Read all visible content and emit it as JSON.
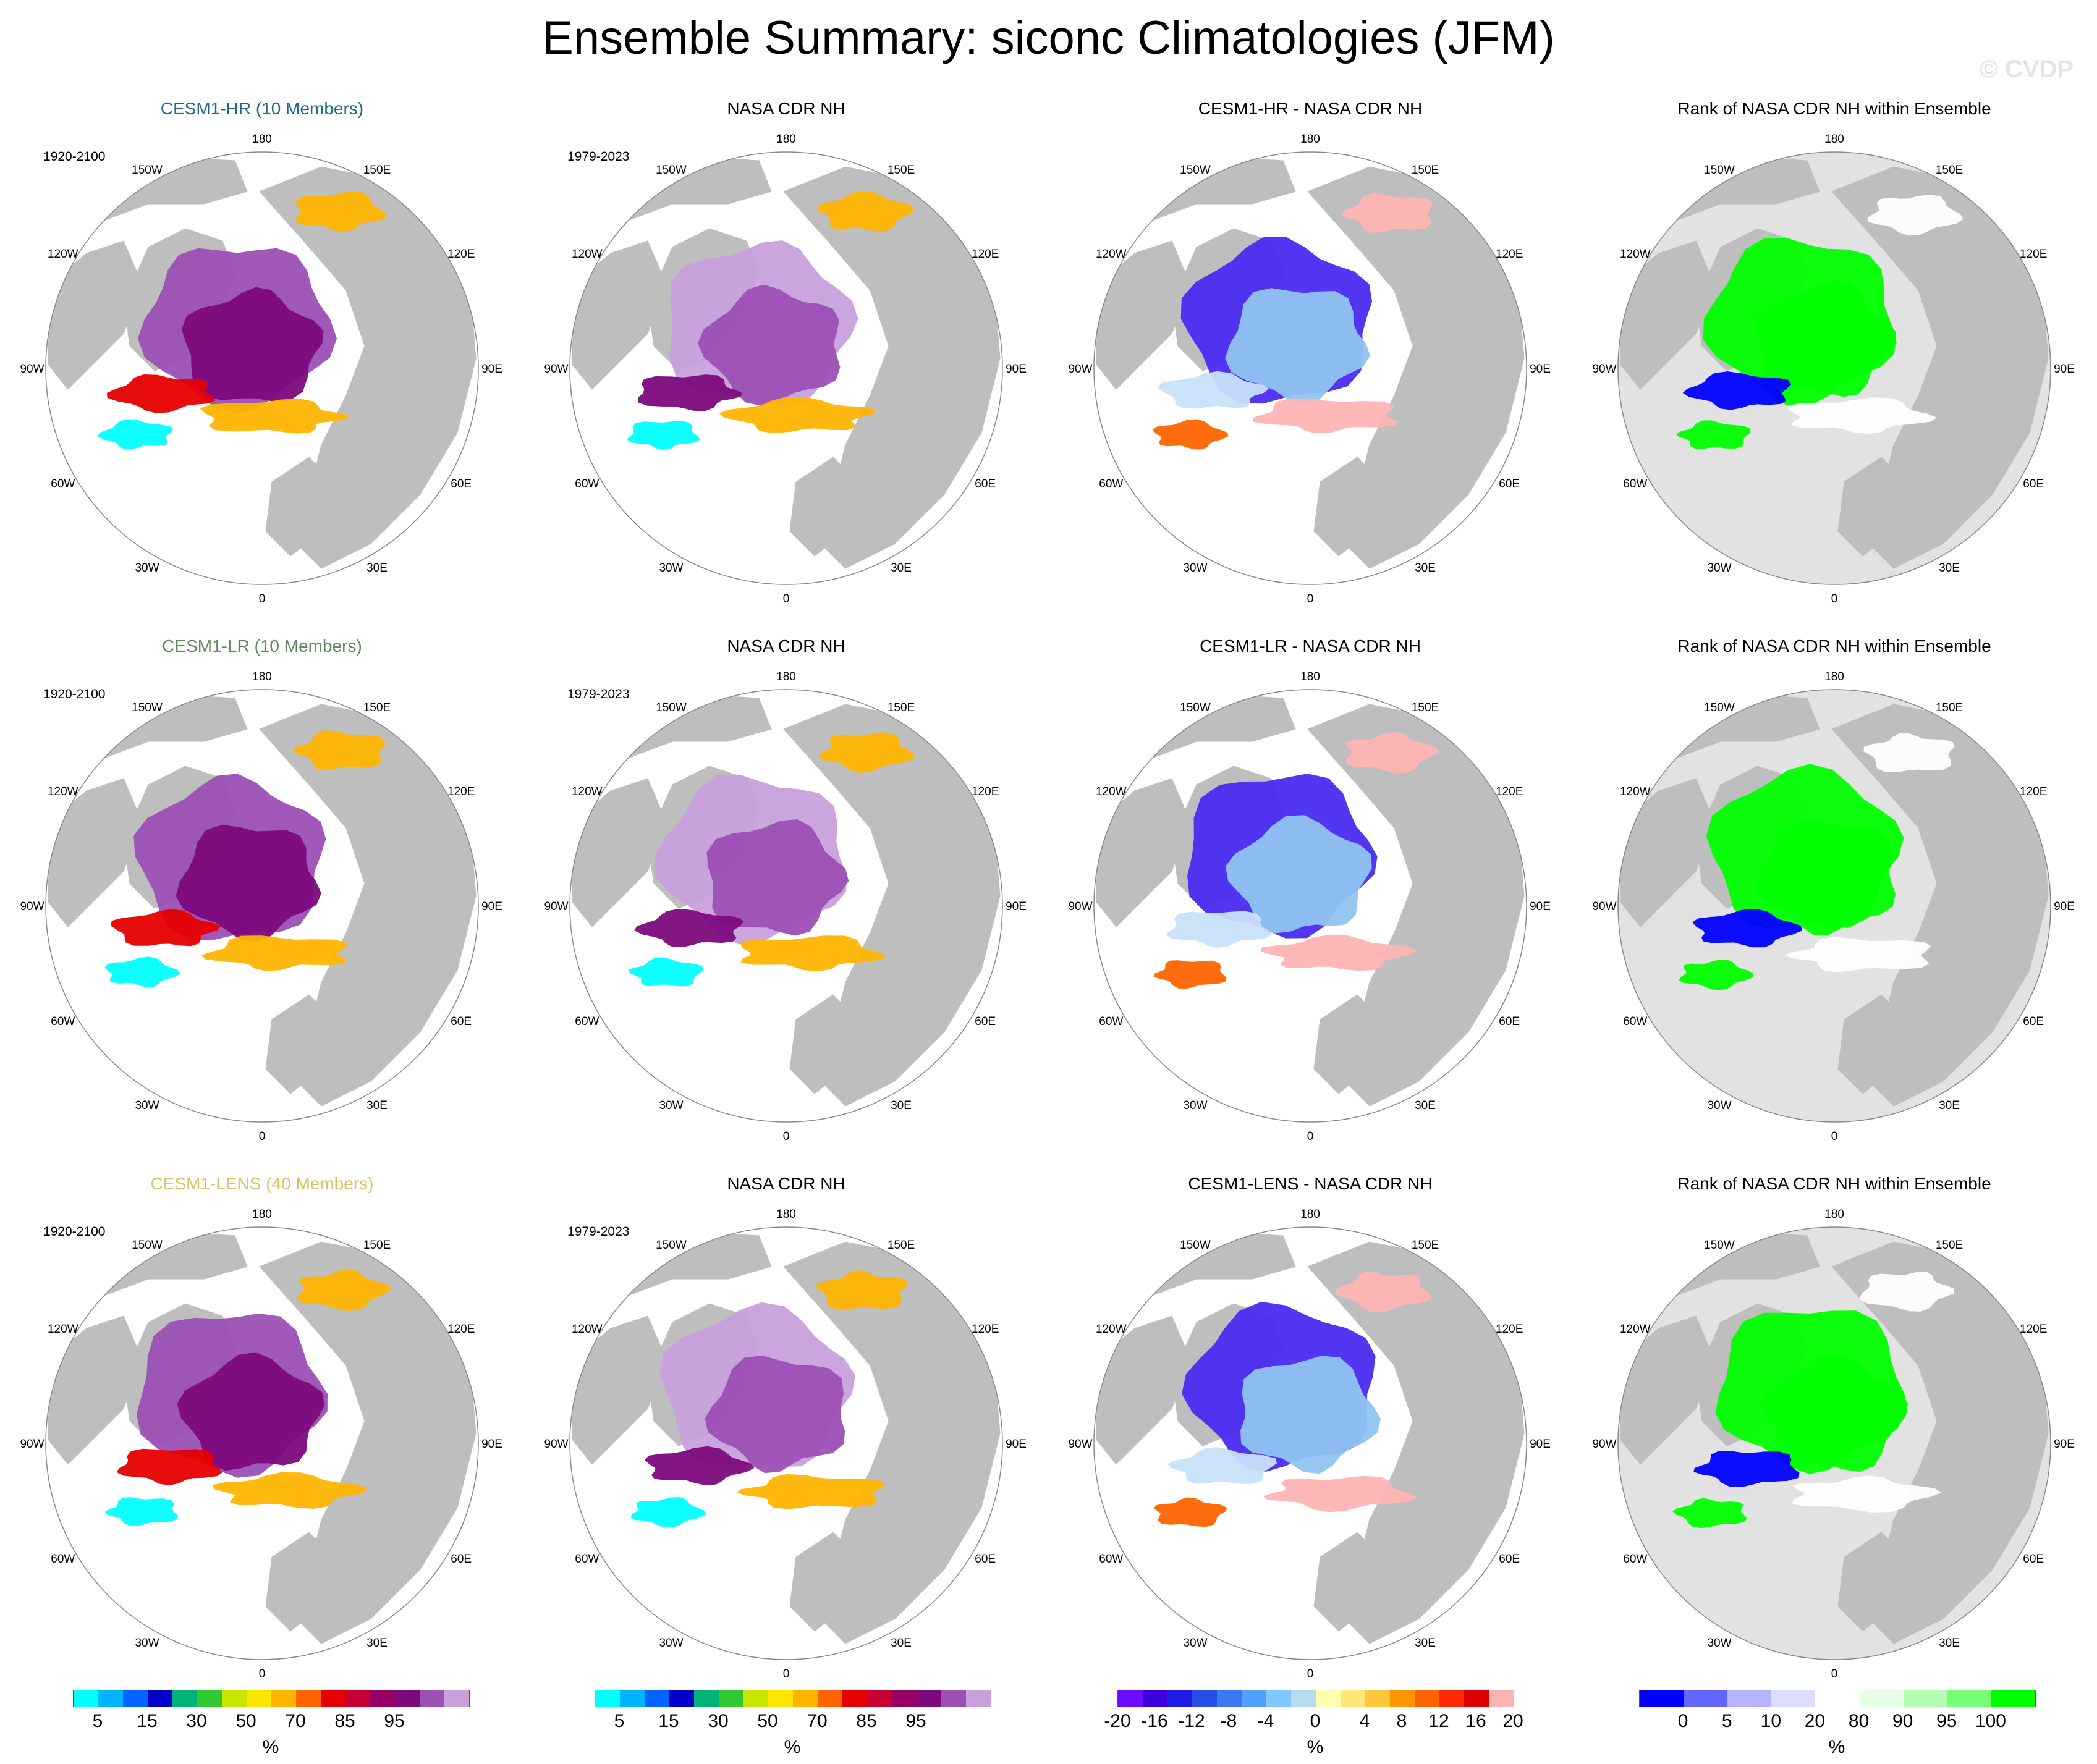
{
  "title": "Ensemble Summary: siconc Climatologies (JFM)",
  "watermark": "© CVDP",
  "lon_labels": [
    "180",
    "150E",
    "120E",
    "90E",
    "60E",
    "30E",
    "0",
    "30W",
    "60W",
    "90W",
    "120W",
    "150W"
  ],
  "rows": [
    {
      "panels": [
        {
          "title": "CESM1-HR (10 Members)",
          "title_color": "#1f6a86",
          "period": "1920-2100",
          "kind": "model"
        },
        {
          "title": "NASA CDR NH",
          "title_color": "#000000",
          "period": "1979-2023",
          "kind": "obs"
        },
        {
          "title": "CESM1-HR - NASA CDR NH",
          "title_color": "#000000",
          "period": "",
          "kind": "diff"
        },
        {
          "title": "Rank of NASA CDR NH within Ensemble",
          "title_color": "#000000",
          "period": "",
          "kind": "rank"
        }
      ]
    },
    {
      "panels": [
        {
          "title": "CESM1-LR (10 Members)",
          "title_color": "#5f8a5a",
          "period": "1920-2100",
          "kind": "model"
        },
        {
          "title": "NASA CDR NH",
          "title_color": "#000000",
          "period": "1979-2023",
          "kind": "obs"
        },
        {
          "title": "CESM1-LR - NASA CDR NH",
          "title_color": "#000000",
          "period": "",
          "kind": "diff"
        },
        {
          "title": "Rank of NASA CDR NH within Ensemble",
          "title_color": "#000000",
          "period": "",
          "kind": "rank"
        }
      ]
    },
    {
      "panels": [
        {
          "title": "CESM1-LENS (40 Members)",
          "title_color": "#d6c46c",
          "period": "1920-2100",
          "kind": "model"
        },
        {
          "title": "NASA CDR NH",
          "title_color": "#000000",
          "period": "1979-2023",
          "kind": "obs"
        },
        {
          "title": "CESM1-LENS - NASA CDR NH",
          "title_color": "#000000",
          "period": "",
          "kind": "diff"
        },
        {
          "title": "Rank of NASA CDR NH within Ensemble",
          "title_color": "#000000",
          "period": "",
          "kind": "rank"
        }
      ]
    }
  ],
  "colorbars": [
    {
      "unit": "%",
      "colors": [
        "#00ffff",
        "#00b4ff",
        "#0064ff",
        "#0000c8",
        "#00b478",
        "#32c832",
        "#c8e600",
        "#ffe600",
        "#ffb400",
        "#ff6400",
        "#e60000",
        "#c80032",
        "#960064",
        "#7d0a7d",
        "#9b50b4",
        "#c8a0dc"
      ],
      "ticks": [
        "5",
        "15",
        "30",
        "50",
        "70",
        "85",
        "95"
      ],
      "tick_boundaries": [
        1,
        3,
        5,
        7,
        9,
        11,
        13
      ]
    },
    {
      "unit": "%",
      "colors": [
        "#00ffff",
        "#00b4ff",
        "#0064ff",
        "#0000c8",
        "#00b478",
        "#32c832",
        "#c8e600",
        "#ffe600",
        "#ffb400",
        "#ff6400",
        "#e60000",
        "#c80032",
        "#960064",
        "#7d0a7d",
        "#9b50b4",
        "#c8a0dc"
      ],
      "ticks": [
        "5",
        "15",
        "30",
        "50",
        "70",
        "85",
        "95"
      ],
      "tick_boundaries": [
        1,
        3,
        5,
        7,
        9,
        11,
        13
      ]
    },
    {
      "unit": "%",
      "colors": [
        "#6a0dff",
        "#3c00dc",
        "#1e1ee6",
        "#2850e6",
        "#3c78f0",
        "#50a0ff",
        "#82c8ff",
        "#b4dcf0",
        "#ffffb4",
        "#ffe678",
        "#ffc83c",
        "#ff9600",
        "#ff6400",
        "#ff2800",
        "#dc0000",
        "#ffb4b4"
      ],
      "ticks": [
        "-20",
        "-16",
        "-12",
        "-8",
        "-4",
        "0",
        "4",
        "8",
        "12",
        "16",
        "20"
      ],
      "tick_boundaries": [
        0,
        1.5,
        3,
        4.5,
        6,
        8,
        10,
        11.5,
        13,
        14.5,
        16
      ]
    },
    {
      "unit": "%",
      "colors": [
        "#0000ff",
        "#6464ff",
        "#b4b4ff",
        "#dcdcff",
        "#ffffff",
        "#e6ffe6",
        "#b4ffb4",
        "#78ff78",
        "#00ff00"
      ],
      "ticks": [
        "0",
        "5",
        "10",
        "20",
        "80",
        "90",
        "95",
        "100"
      ],
      "tick_boundaries": [
        1,
        2,
        3,
        4,
        5,
        6,
        7,
        8
      ]
    }
  ]
}
